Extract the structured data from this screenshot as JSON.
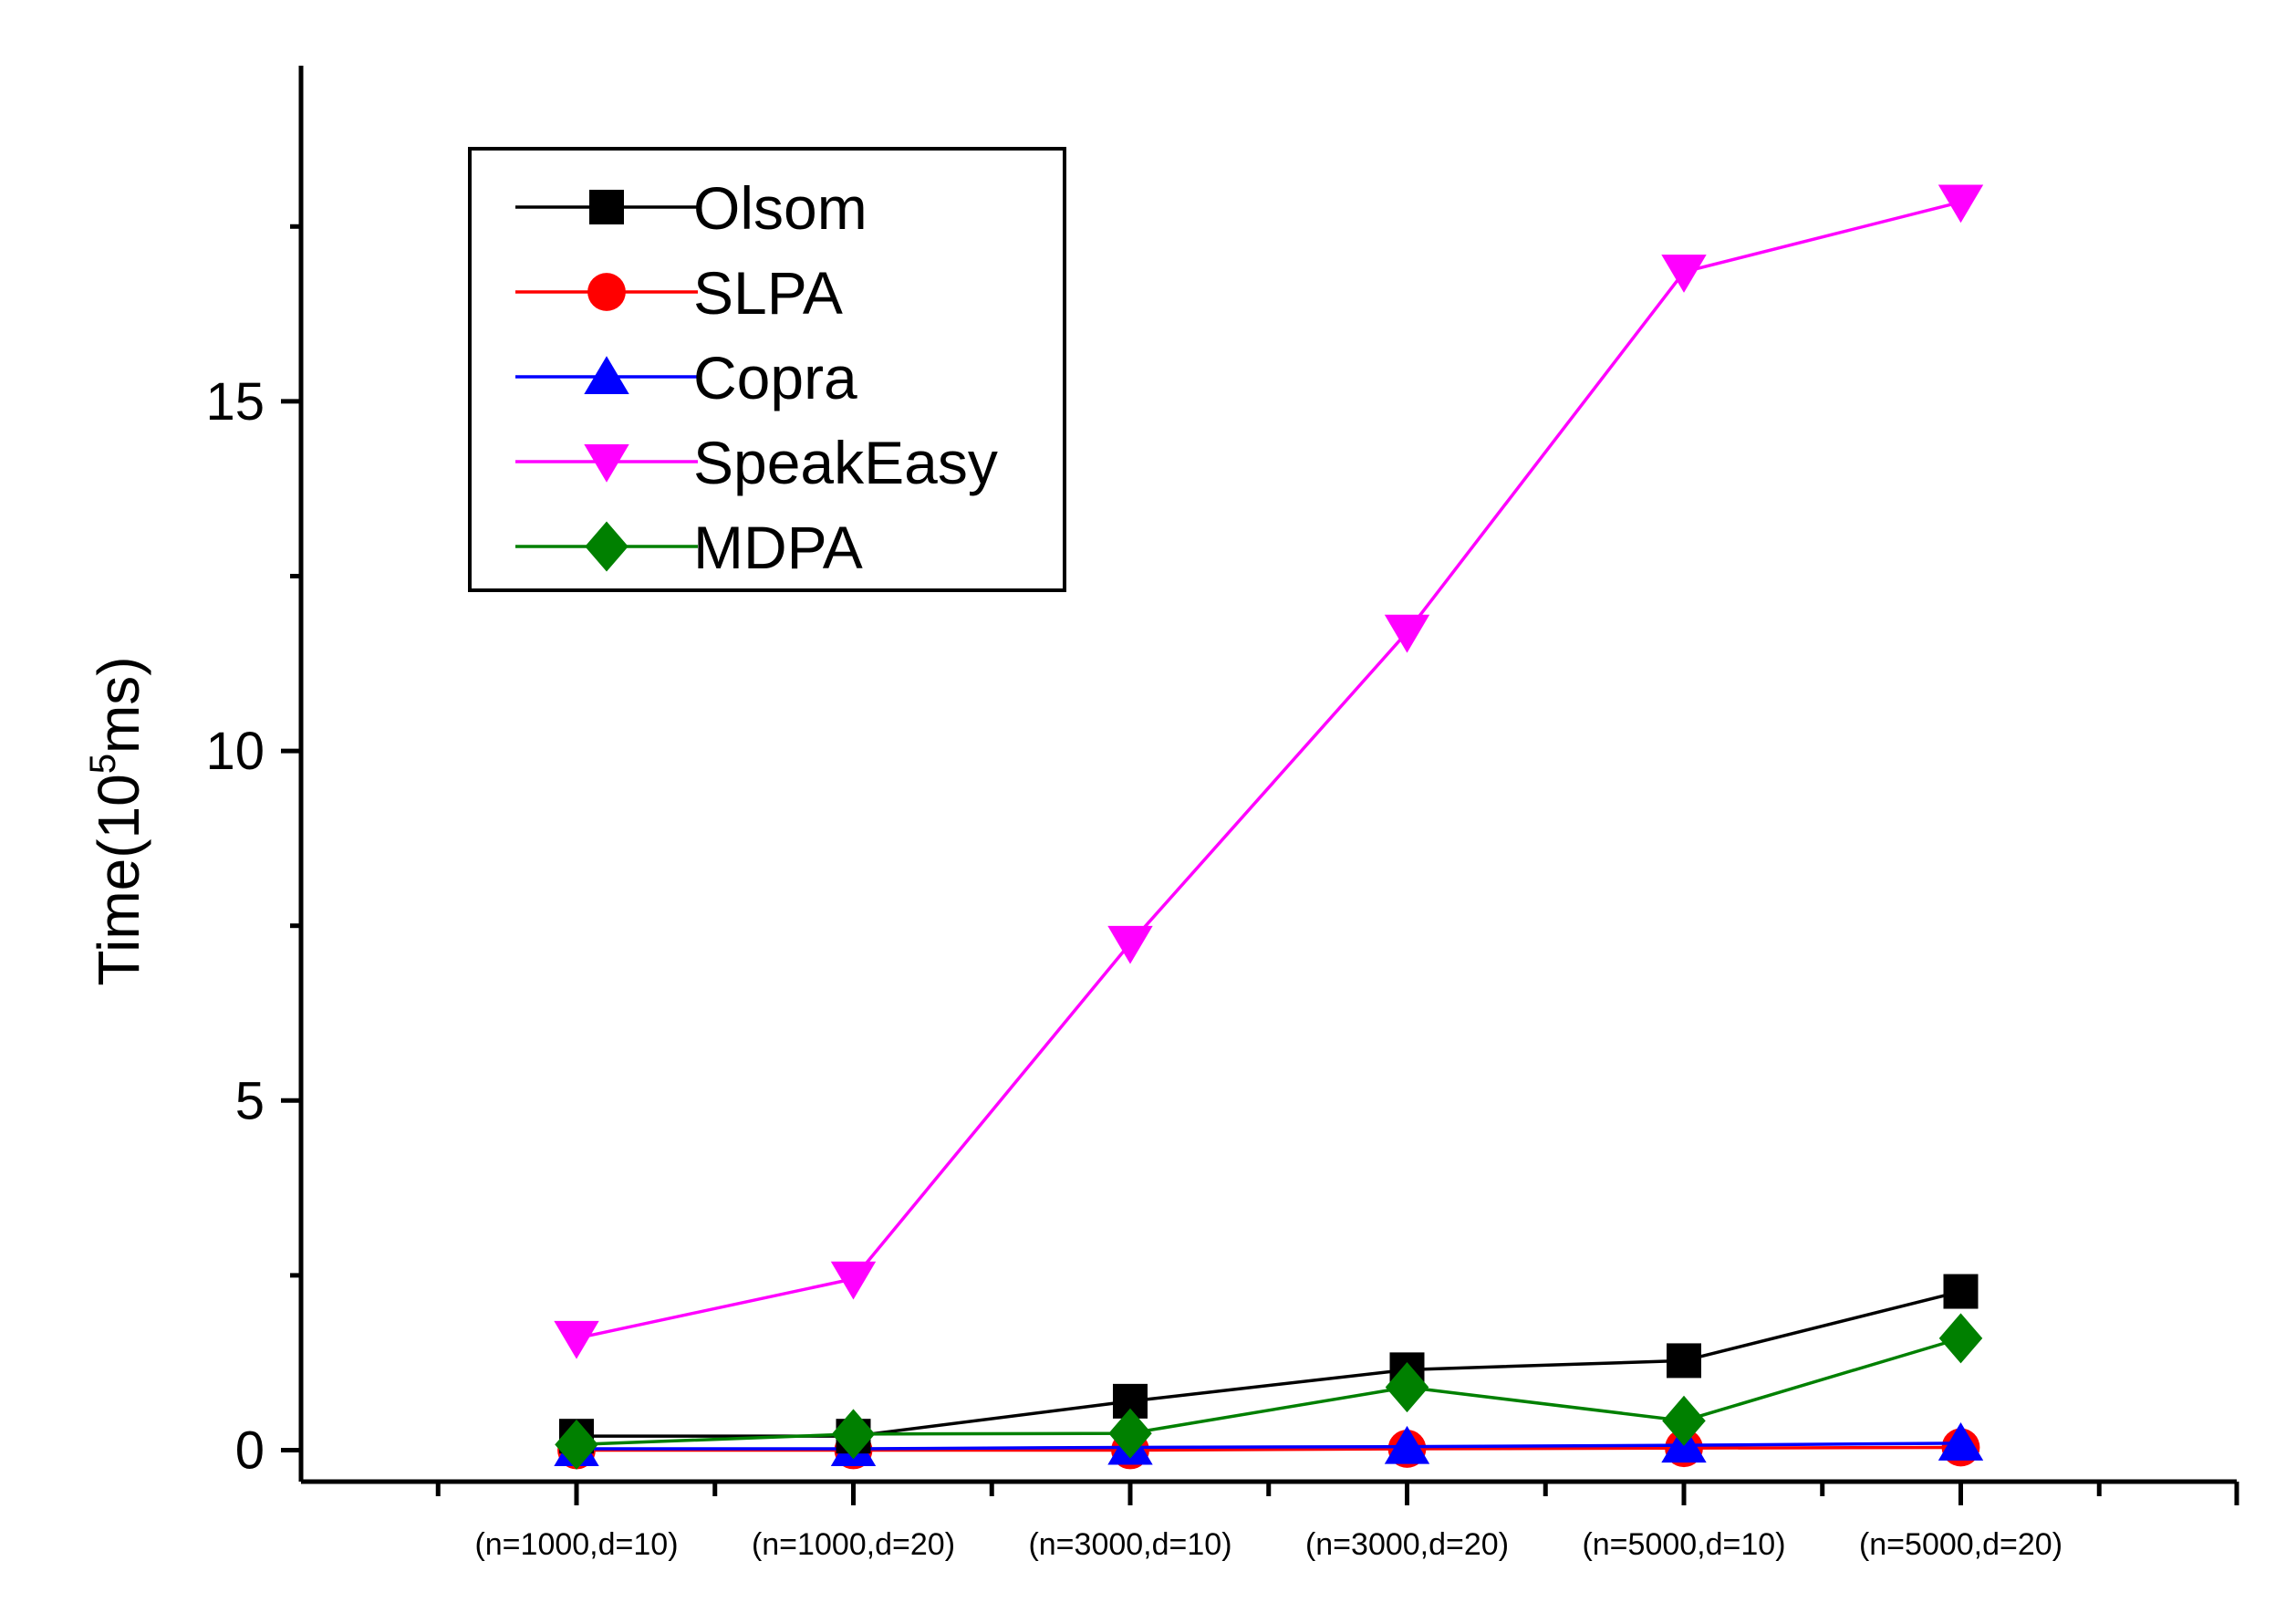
{
  "chart_data": {
    "type": "line",
    "title": "",
    "xlabel": "",
    "ylabel": "Time(10",
    "ylabel_sup": "5",
    "ylabel_suffix": "ms)",
    "categories": [
      "(n=1000,d=10)",
      "(n=1000,d=20)",
      "(n=3000,d=10)",
      "(n=3000,d=20)",
      "(n=5000,d=10)",
      "(n=5000,d=20)"
    ],
    "ylim": [
      -0.45,
      19.8
    ],
    "y_ticks_major": [
      0,
      5,
      10,
      15
    ],
    "y_ticks_minor": [
      2.5,
      7.5,
      12.5,
      17.5
    ],
    "grid": false,
    "legend_position": "top-left",
    "series": [
      {
        "name": "Olsom",
        "color": "#000000",
        "marker": "square",
        "values": [
          0.2,
          0.2,
          0.7,
          1.15,
          1.28,
          2.27
        ]
      },
      {
        "name": "SLPA",
        "color": "#ff0000",
        "marker": "circle",
        "values": [
          0.0,
          0.0,
          0.0,
          0.02,
          0.03,
          0.04
        ]
      },
      {
        "name": "Copra",
        "color": "#0000ff",
        "marker": "triangle-up",
        "values": [
          0.02,
          0.02,
          0.04,
          0.05,
          0.07,
          0.1
        ]
      },
      {
        "name": "SpeakEasy",
        "color": "#ff00ff",
        "marker": "triangle-down",
        "values": [
          1.6,
          2.45,
          7.25,
          11.7,
          16.85,
          17.85
        ]
      },
      {
        "name": "MDPA",
        "color": "#008000",
        "marker": "diamond",
        "values": [
          0.08,
          0.23,
          0.24,
          0.9,
          0.42,
          1.6
        ]
      }
    ]
  }
}
